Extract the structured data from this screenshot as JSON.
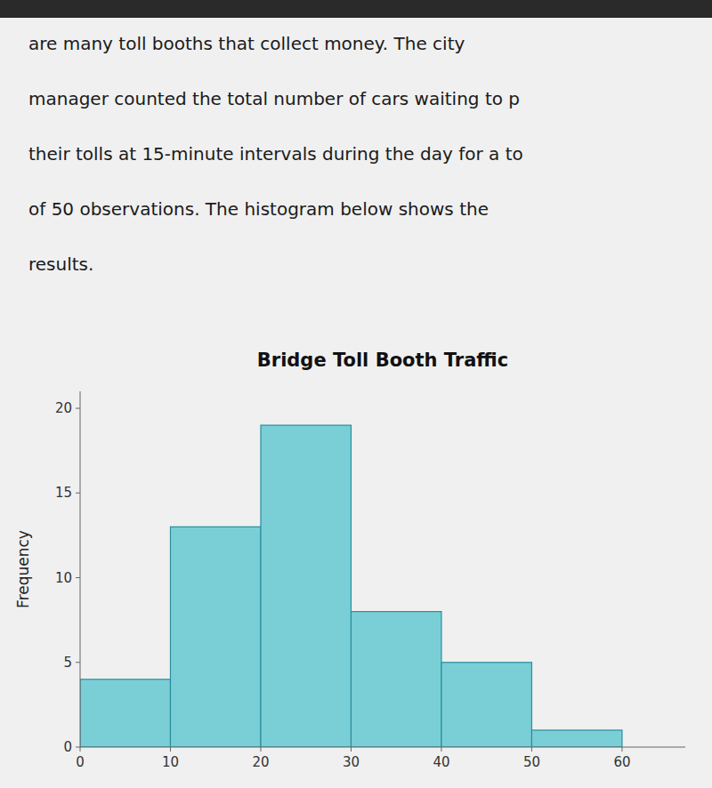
{
  "chart_data": {
    "type": "histogram",
    "title": "Bridge Toll Booth Traffic",
    "ylabel": "Frequency",
    "annotations": [
      "are many toll booths that collect money. The city",
      "manager counted the total number of cars waiting to p",
      "their tolls at 15-minute intervals during the day for a to",
      "of 50 observations. The histogram below shows the",
      "results."
    ],
    "bins": [
      0,
      10,
      20,
      30,
      40,
      50,
      60
    ],
    "values": [
      4,
      13,
      19,
      8,
      5,
      1
    ],
    "color": "#7acfd6",
    "xlim": [
      0,
      67
    ],
    "ylim": [
      0,
      21
    ],
    "xticks": [
      0,
      10,
      20,
      30,
      40,
      50,
      60
    ],
    "yticks": [
      0,
      5,
      10,
      15,
      20
    ],
    "grid": false
  }
}
